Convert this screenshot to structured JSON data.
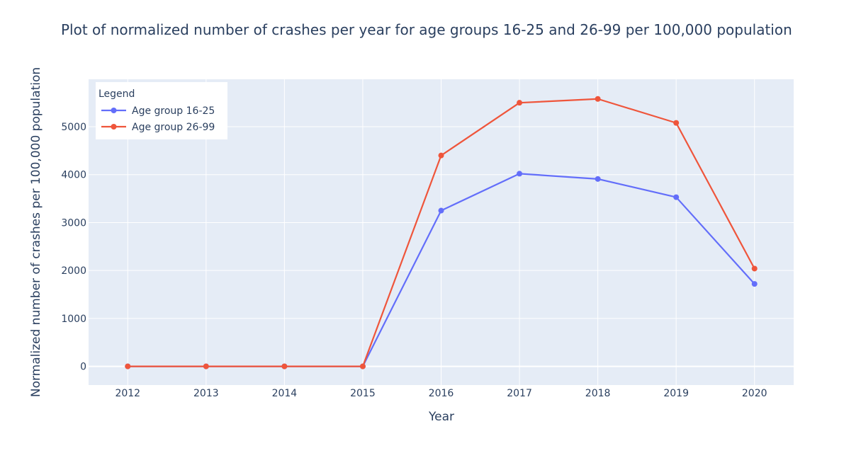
{
  "colors": {
    "plot_bg": "#e5ecf6",
    "grid": "#ffffff",
    "text": "#2a3f5f",
    "series_1": "#636efa",
    "series_2": "#ef553b"
  },
  "chart_data": {
    "type": "line",
    "title": "Plot of normalized number of crashes per year for age groups 16-25 and 26-99 per 100,000 population",
    "xlabel": "Year",
    "ylabel": "Normalized number of crashes per 100,000 population",
    "x": [
      2012,
      2013,
      2014,
      2015,
      2016,
      2017,
      2018,
      2019,
      2020
    ],
    "x_tick_labels": [
      "2012",
      "2013",
      "2014",
      "2015",
      "2016",
      "2017",
      "2018",
      "2019",
      "2020"
    ],
    "y_ticks": [
      0,
      1000,
      2000,
      3000,
      4000,
      5000
    ],
    "y_tick_labels": [
      "0",
      "1000",
      "2000",
      "3000",
      "4000",
      "5000"
    ],
    "xlim": [
      2011.5,
      2020.5
    ],
    "ylim": [
      -390,
      5990
    ],
    "grid": true,
    "legend": {
      "title": "Legend",
      "position": "top-left"
    },
    "series": [
      {
        "name": "Age group 16-25",
        "color": "#636efa",
        "values": [
          0,
          0,
          0,
          0,
          3250,
          4020,
          3910,
          3530,
          1720
        ]
      },
      {
        "name": "Age group 26-99",
        "color": "#ef553b",
        "values": [
          0,
          0,
          0,
          0,
          4400,
          5500,
          5580,
          5080,
          2040
        ]
      }
    ]
  }
}
